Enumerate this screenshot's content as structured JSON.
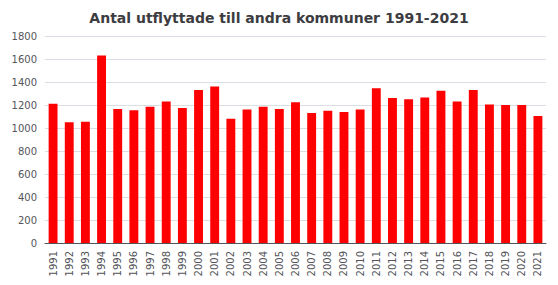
{
  "chart_data": {
    "type": "bar",
    "title": "Antal utflyttade till andra kommuner 1991-2021",
    "categories": [
      1991,
      1992,
      1993,
      1994,
      1995,
      1996,
      1997,
      1998,
      1999,
      2000,
      2001,
      2002,
      2003,
      2004,
      2005,
      2006,
      2007,
      2008,
      2009,
      2010,
      2011,
      2012,
      2013,
      2014,
      2015,
      2016,
      2017,
      2018,
      2019,
      2020,
      2021
    ],
    "values": [
      1210,
      1050,
      1055,
      1630,
      1165,
      1155,
      1185,
      1230,
      1175,
      1330,
      1360,
      1080,
      1160,
      1185,
      1165,
      1225,
      1130,
      1150,
      1140,
      1160,
      1345,
      1260,
      1250,
      1265,
      1325,
      1230,
      1330,
      1205,
      1200,
      1200,
      1105
    ],
    "color": "#ff0000",
    "ylim": [
      0,
      1800
    ],
    "yticks": [
      0,
      200,
      400,
      600,
      800,
      1000,
      1200,
      1400,
      1600,
      1800
    ],
    "grid": true
  }
}
